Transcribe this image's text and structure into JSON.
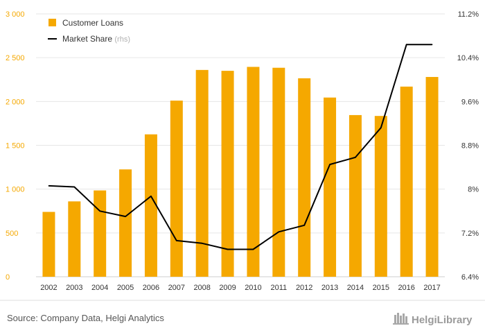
{
  "chart_data": {
    "type": "bar+line",
    "categories": [
      "2002",
      "2003",
      "2004",
      "2005",
      "2006",
      "2007",
      "2008",
      "2009",
      "2010",
      "2011",
      "2012",
      "2013",
      "2014",
      "2015",
      "2016",
      "2017"
    ],
    "series": [
      {
        "name": "Customer Loans",
        "type": "bar",
        "axis": "left",
        "color": "#f5a800",
        "values": [
          740,
          860,
          985,
          1225,
          1625,
          2010,
          2360,
          2350,
          2395,
          2385,
          2265,
          2045,
          1845,
          1835,
          2170,
          2280
        ]
      },
      {
        "name": "Market Share",
        "suffix": "(rhs)",
        "type": "line",
        "axis": "right",
        "color": "#000000",
        "values": [
          8.06,
          8.04,
          7.6,
          7.5,
          7.87,
          7.06,
          7.01,
          6.9,
          6.9,
          7.22,
          7.34,
          8.45,
          8.58,
          9.12,
          10.64,
          10.64
        ]
      }
    ],
    "y_left": {
      "min": 0,
      "max": 3000,
      "ticks": [
        "0",
        "500",
        "1 000",
        "1 500",
        "2 000",
        "2 500",
        "3 000"
      ],
      "tick_values": [
        0,
        500,
        1000,
        1500,
        2000,
        2500,
        3000
      ]
    },
    "y_right": {
      "min": 6.4,
      "max": 11.2,
      "ticks": [
        "6.4%",
        "7.2%",
        "8%",
        "8.8%",
        "9.6%",
        "10.4%",
        "11.2%"
      ],
      "tick_values": [
        6.4,
        7.2,
        8.0,
        8.8,
        9.6,
        10.4,
        11.2
      ]
    },
    "grid": true,
    "legend_position": "top-left"
  },
  "footer": {
    "source": "Source: Company Data, Helgi Analytics",
    "brand": "HelgiLibrary"
  },
  "colors": {
    "bar": "#f5a800",
    "line": "#000000",
    "grid": "#e6e6e6",
    "left_axis_text": "#f5a800"
  }
}
